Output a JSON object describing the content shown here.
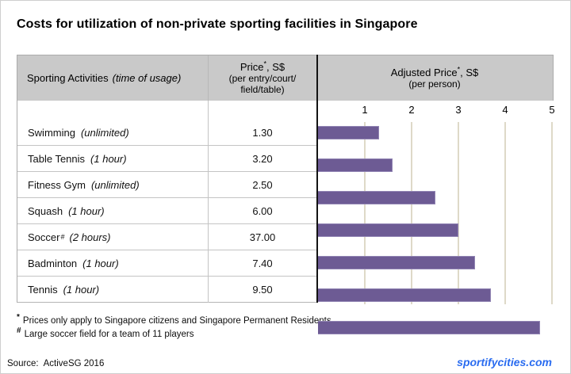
{
  "title": "Costs for utilization of non-private sporting facilities in Singapore",
  "table": {
    "header": {
      "activities_label": "Sporting Activities",
      "activities_note": "(time of usage)",
      "price_label": "Price",
      "price_sup": "*",
      "price_unit": ", S$",
      "price_sub1": "(per entry/court/",
      "price_sub2": "field/table)",
      "adjusted_label": "Adjusted Price",
      "adjusted_sup": "*",
      "adjusted_unit": ", S$",
      "adjusted_sub": "(per person)"
    },
    "rows": [
      {
        "activity": "Swimming",
        "sup": "",
        "time": "(unlimited)",
        "price": "1.30"
      },
      {
        "activity": "Table Tennis",
        "sup": "",
        "time": "(1 hour)",
        "price": "3.20"
      },
      {
        "activity": "Fitness Gym",
        "sup": "",
        "time": "(unlimited)",
        "price": "2.50"
      },
      {
        "activity": "Squash",
        "sup": "",
        "time": "(1 hour)",
        "price": "6.00"
      },
      {
        "activity": "Soccer",
        "sup": "#",
        "time": "(2 hours)",
        "price": "37.00"
      },
      {
        "activity": "Badminton",
        "sup": "",
        "time": "(1 hour)",
        "price": "7.40"
      },
      {
        "activity": "Tennis",
        "sup": "",
        "time": "(1 hour)",
        "price": "9.50"
      }
    ]
  },
  "chart_data": {
    "type": "bar",
    "orientation": "horizontal",
    "title": "Adjusted Price*, S$ (per person)",
    "categories": [
      "Swimming",
      "Table Tennis",
      "Fitness Gym",
      "Squash",
      "Soccer",
      "Badminton",
      "Tennis"
    ],
    "values": [
      1.3,
      1.6,
      2.5,
      3.0,
      3.36,
      3.7,
      4.75
    ],
    "xlim": [
      0,
      5
    ],
    "ticks": [
      "1",
      "2",
      "3",
      "4",
      "5"
    ],
    "grid": "vertical gridlines only",
    "bar_color": "#6d5b94",
    "bar_border_color": "#9184b3",
    "gridline_color": "#ded9c8",
    "header_bg_color": "#c9c9c9"
  },
  "footnotes": [
    {
      "sup": "*",
      "text": "Prices only apply to Singapore citizens and Singapore Permanent Residents"
    },
    {
      "sup": "#",
      "text": "Large soccer field for a team of 11 players"
    }
  ],
  "source": {
    "label": "Source:",
    "value": "ActiveSG 2016"
  },
  "branding": {
    "text": "sportifycities.com",
    "color": "#2a6cf0"
  }
}
